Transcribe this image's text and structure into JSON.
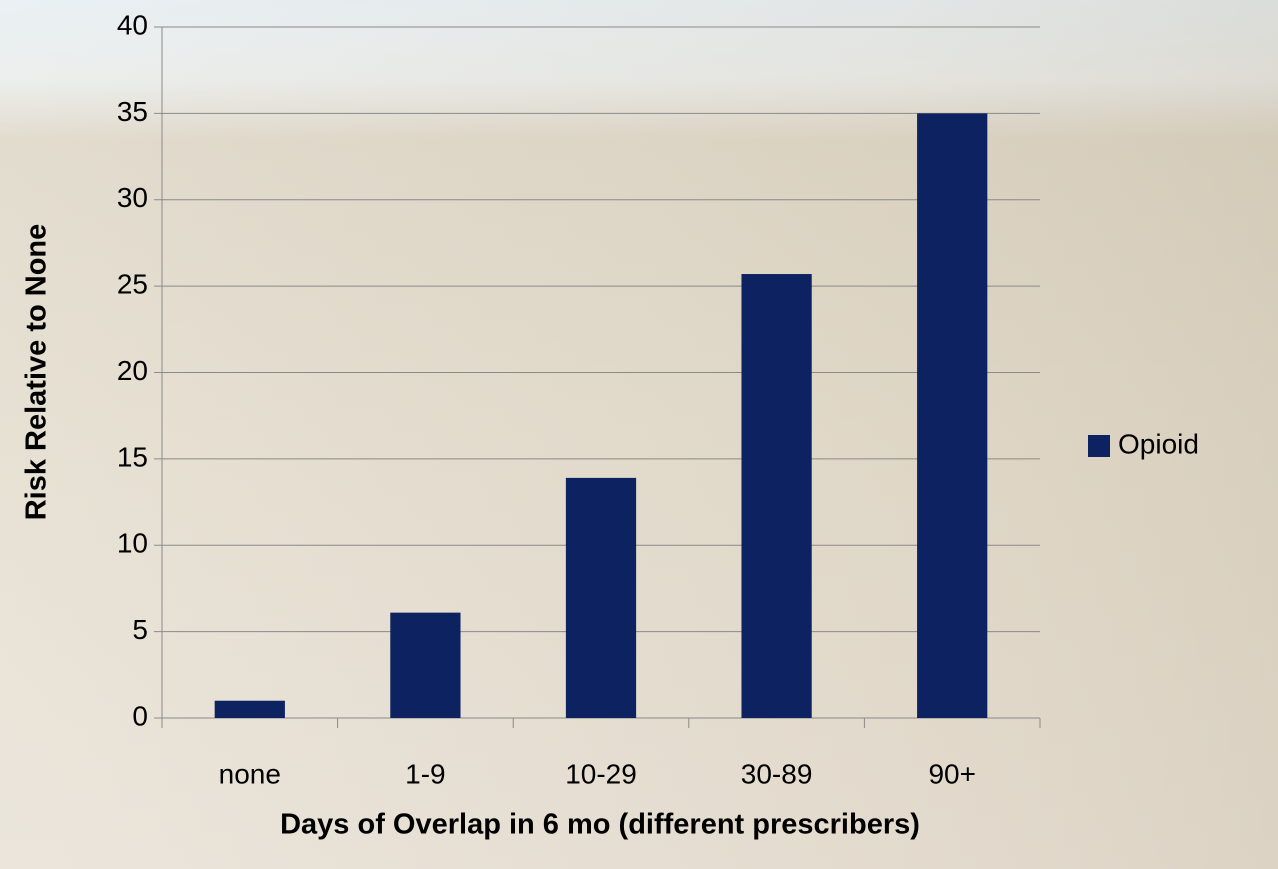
{
  "chart_data": {
    "type": "bar",
    "categories": [
      "none",
      "1-9",
      "10-29",
      "30-89",
      "90+"
    ],
    "series": [
      {
        "name": "Opioid",
        "color": "#0d2361",
        "values": [
          1,
          6.1,
          13.9,
          25.7,
          35
        ]
      }
    ],
    "xlabel": "Days of Overlap in 6 mo (different prescribers)",
    "ylabel": "Risk Relative to None",
    "ylim": [
      0,
      40
    ],
    "yticks": [
      0,
      5,
      10,
      15,
      20,
      25,
      30,
      35,
      40
    ],
    "grid": true,
    "legend": "right"
  }
}
